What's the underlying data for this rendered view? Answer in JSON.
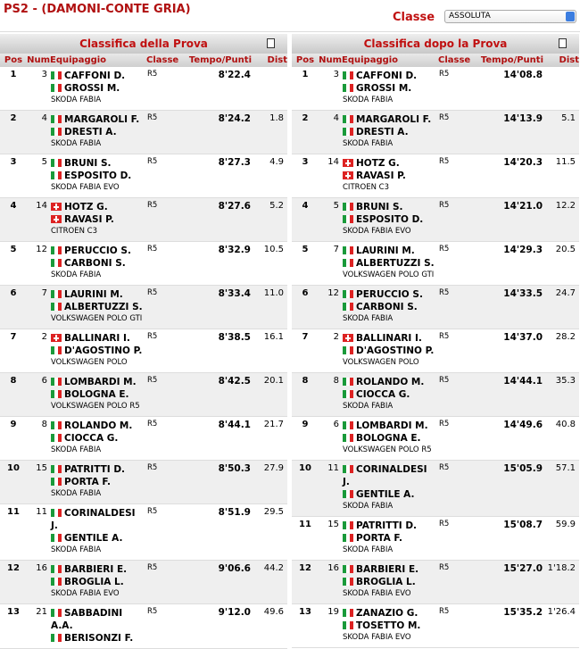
{
  "header": {
    "title": "PS2 - (DAMONI-CONTE GRIA)",
    "classe_label": "Classe",
    "classe_value": "ASSOLUTA"
  },
  "tables": [
    {
      "title": "Classifica della Prova",
      "columns": [
        "Pos",
        "Num",
        "Equipaggio",
        "Classe",
        "Tempo/Punti",
        "Dist"
      ],
      "rows": [
        {
          "pos": 1,
          "num": 3,
          "crew": [
            {
              "name": "CAFFONI D.",
              "flag": "it"
            },
            {
              "name": "GROSSI M.",
              "flag": "it"
            }
          ],
          "car": "SKODA FABIA",
          "classe": "R5",
          "tempo": "8'22.4"
        },
        {
          "pos": 2,
          "num": 4,
          "crew": [
            {
              "name": "MARGAROLI F.",
              "flag": "it"
            },
            {
              "name": "DRESTI A.",
              "flag": "it"
            }
          ],
          "car": "SKODA FABIA",
          "classe": "R5",
          "tempo": "8'24.2",
          "dist": "1.8"
        },
        {
          "pos": 3,
          "num": 5,
          "crew": [
            {
              "name": "BRUNI S.",
              "flag": "it"
            },
            {
              "name": "ESPOSITO D.",
              "flag": "it"
            }
          ],
          "car": "SKODA FABIA EVO",
          "classe": "R5",
          "tempo": "8'27.3",
          "dist": "4.9"
        },
        {
          "pos": 4,
          "num": 14,
          "crew": [
            {
              "name": "HOTZ G.",
              "flag": "ch"
            },
            {
              "name": "RAVASI P.",
              "flag": "ch"
            }
          ],
          "car": "CITROEN C3",
          "classe": "R5",
          "tempo": "8'27.6",
          "dist": "5.2"
        },
        {
          "pos": 5,
          "num": 12,
          "crew": [
            {
              "name": "PERUCCIO S.",
              "flag": "it"
            },
            {
              "name": "CARBONI S.",
              "flag": "it"
            }
          ],
          "car": "SKODA FABIA",
          "classe": "R5",
          "tempo": "8'32.9",
          "dist": "10.5"
        },
        {
          "pos": 6,
          "num": 7,
          "crew": [
            {
              "name": "LAURINI M.",
              "flag": "it"
            },
            {
              "name": "ALBERTUZZI S.",
              "flag": "it"
            }
          ],
          "car": "VOLKSWAGEN POLO GTI",
          "classe": "R5",
          "tempo": "8'33.4",
          "dist": "11.0"
        },
        {
          "pos": 7,
          "num": 2,
          "crew": [
            {
              "name": "BALLINARI I.",
              "flag": "ch"
            },
            {
              "name": "D'AGOSTINO P.",
              "flag": "it"
            }
          ],
          "car": "VOLKSWAGEN POLO",
          "classe": "R5",
          "tempo": "8'38.5",
          "dist": "16.1"
        },
        {
          "pos": 8,
          "num": 6,
          "crew": [
            {
              "name": "LOMBARDI M.",
              "flag": "it"
            },
            {
              "name": "BOLOGNA E.",
              "flag": "it"
            }
          ],
          "car": "VOLKSWAGEN POLO R5",
          "classe": "R5",
          "tempo": "8'42.5",
          "dist": "20.1"
        },
        {
          "pos": 9,
          "num": 8,
          "crew": [
            {
              "name": "ROLANDO M.",
              "flag": "it"
            },
            {
              "name": "CIOCCA G.",
              "flag": "it"
            }
          ],
          "car": "SKODA FABIA",
          "classe": "R5",
          "tempo": "8'44.1",
          "dist": "21.7"
        },
        {
          "pos": 10,
          "num": 15,
          "crew": [
            {
              "name": "PATRITTI D.",
              "flag": "it"
            },
            {
              "name": "PORTA F.",
              "flag": "it"
            }
          ],
          "car": "SKODA FABIA",
          "classe": "R5",
          "tempo": "8'50.3",
          "dist": "27.9"
        },
        {
          "pos": 11,
          "num": 11,
          "crew": [
            {
              "name": "CORINALDESI J.",
              "flag": "it"
            },
            {
              "name": "GENTILE A.",
              "flag": "it"
            }
          ],
          "car": "SKODA FABIA",
          "classe": "R5",
          "tempo": "8'51.9",
          "dist": "29.5"
        },
        {
          "pos": 12,
          "num": 16,
          "crew": [
            {
              "name": "BARBIERI E.",
              "flag": "it"
            },
            {
              "name": "BROGLIA L.",
              "flag": "it"
            }
          ],
          "car": "SKODA FABIA EVO",
          "classe": "R5",
          "tempo": "9'06.6",
          "dist": "44.2"
        },
        {
          "pos": 13,
          "num": 21,
          "crew": [
            {
              "name": "SABBADINI A.A.",
              "flag": "it"
            },
            {
              "name": "BERISONZI F.",
              "flag": "it"
            }
          ],
          "classe": "R5",
          "tempo": "9'12.0",
          "dist": "49.6"
        }
      ]
    },
    {
      "title": "Classifica dopo la Prova",
      "columns": [
        "Pos",
        "Num",
        "Equipaggio",
        "Classe",
        "Tempo/Punti",
        "Dist"
      ],
      "rows": [
        {
          "pos": 1,
          "num": 3,
          "crew": [
            {
              "name": "CAFFONI D.",
              "flag": "it"
            },
            {
              "name": "GROSSI M.",
              "flag": "it"
            }
          ],
          "car": "SKODA FABIA",
          "classe": "R5",
          "tempo": "14'08.8"
        },
        {
          "pos": 2,
          "num": 4,
          "crew": [
            {
              "name": "MARGAROLI F.",
              "flag": "it"
            },
            {
              "name": "DRESTI A.",
              "flag": "it"
            }
          ],
          "car": "SKODA FABIA",
          "classe": "R5",
          "tempo": "14'13.9",
          "dist": "5.1"
        },
        {
          "pos": 3,
          "num": 14,
          "crew": [
            {
              "name": "HOTZ G.",
              "flag": "ch"
            },
            {
              "name": "RAVASI P.",
              "flag": "ch"
            }
          ],
          "car": "CITROEN C3",
          "classe": "R5",
          "tempo": "14'20.3",
          "dist": "11.5"
        },
        {
          "pos": 4,
          "num": 5,
          "crew": [
            {
              "name": "BRUNI S.",
              "flag": "it"
            },
            {
              "name": "ESPOSITO D.",
              "flag": "it"
            }
          ],
          "car": "SKODA FABIA EVO",
          "classe": "R5",
          "tempo": "14'21.0",
          "dist": "12.2"
        },
        {
          "pos": 5,
          "num": 7,
          "crew": [
            {
              "name": "LAURINI M.",
              "flag": "it"
            },
            {
              "name": "ALBERTUZZI S.",
              "flag": "it"
            }
          ],
          "car": "VOLKSWAGEN POLO GTI",
          "classe": "R5",
          "tempo": "14'29.3",
          "dist": "20.5"
        },
        {
          "pos": 6,
          "num": 12,
          "crew": [
            {
              "name": "PERUCCIO S.",
              "flag": "it"
            },
            {
              "name": "CARBONI S.",
              "flag": "it"
            }
          ],
          "car": "SKODA FABIA",
          "classe": "R5",
          "tempo": "14'33.5",
          "dist": "24.7"
        },
        {
          "pos": 7,
          "num": 2,
          "crew": [
            {
              "name": "BALLINARI I.",
              "flag": "ch"
            },
            {
              "name": "D'AGOSTINO P.",
              "flag": "it"
            }
          ],
          "car": "VOLKSWAGEN POLO",
          "classe": "R5",
          "tempo": "14'37.0",
          "dist": "28.2"
        },
        {
          "pos": 8,
          "num": 8,
          "crew": [
            {
              "name": "ROLANDO M.",
              "flag": "it"
            },
            {
              "name": "CIOCCA G.",
              "flag": "it"
            }
          ],
          "car": "SKODA FABIA",
          "classe": "R5",
          "tempo": "14'44.1",
          "dist": "35.3"
        },
        {
          "pos": 9,
          "num": 6,
          "crew": [
            {
              "name": "LOMBARDI M.",
              "flag": "it"
            },
            {
              "name": "BOLOGNA E.",
              "flag": "it"
            }
          ],
          "car": "VOLKSWAGEN POLO R5",
          "classe": "R5",
          "tempo": "14'49.6",
          "dist": "40.8"
        },
        {
          "pos": 10,
          "num": 11,
          "crew": [
            {
              "name": "CORINALDESI J.",
              "flag": "it"
            },
            {
              "name": "GENTILE A.",
              "flag": "it"
            }
          ],
          "car": "SKODA FABIA",
          "classe": "R5",
          "tempo": "15'05.9",
          "dist": "57.1"
        },
        {
          "pos": 11,
          "num": 15,
          "crew": [
            {
              "name": "PATRITTI D.",
              "flag": "it"
            },
            {
              "name": "PORTA F.",
              "flag": "it"
            }
          ],
          "car": "SKODA FABIA",
          "classe": "R5",
          "tempo": "15'08.7",
          "dist": "59.9"
        },
        {
          "pos": 12,
          "num": 16,
          "crew": [
            {
              "name": "BARBIERI E.",
              "flag": "it"
            },
            {
              "name": "BROGLIA L.",
              "flag": "it"
            }
          ],
          "car": "SKODA FABIA EVO",
          "classe": "R5",
          "tempo": "15'27.0",
          "dist": "1'18.2"
        },
        {
          "pos": 13,
          "num": 19,
          "crew": [
            {
              "name": "ZANAZIO G.",
              "flag": "it"
            },
            {
              "name": "TOSETTO M.",
              "flag": "it"
            }
          ],
          "car": "SKODA FABIA EVO",
          "classe": "R5",
          "tempo": "15'35.2",
          "dist": "1'26.4"
        }
      ]
    }
  ]
}
